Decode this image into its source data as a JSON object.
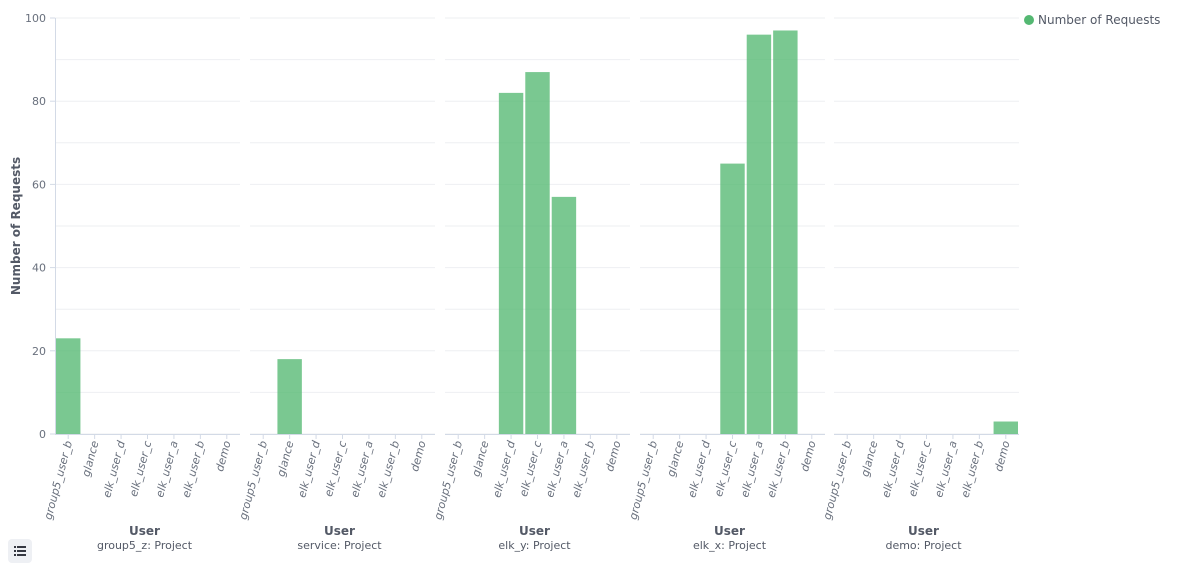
{
  "legend": {
    "label": "Number of Requests",
    "color": "#54b872",
    "toggle_icon": "list-icon"
  },
  "chart_data": {
    "type": "bar",
    "ylabel": "Number of Requests",
    "xlabel": "User",
    "ylim": [
      0,
      100
    ],
    "yticks": [
      0,
      20,
      40,
      60,
      80,
      100
    ],
    "grid": true,
    "legend_position": "top-right",
    "bar_color": "#54b872",
    "categories": [
      "group5_user_b",
      "glance",
      "elk_user_d",
      "elk_user_c",
      "elk_user_a",
      "elk_user_b",
      "demo"
    ],
    "panels": [
      {
        "title": "group5_z: Project",
        "xlabel": "User",
        "values": [
          23,
          0,
          0,
          0,
          0,
          0,
          0
        ]
      },
      {
        "title": "service: Project",
        "xlabel": "User",
        "values": [
          0,
          18,
          0,
          0,
          0,
          0,
          0
        ]
      },
      {
        "title": "elk_y: Project",
        "xlabel": "User",
        "values": [
          0,
          0,
          82,
          87,
          57,
          0,
          0
        ]
      },
      {
        "title": "elk_x: Project",
        "xlabel": "User",
        "values": [
          0,
          0,
          0,
          65,
          96,
          97,
          0
        ]
      },
      {
        "title": "demo: Project",
        "xlabel": "User",
        "values": [
          0,
          0,
          0,
          0,
          0,
          0,
          3
        ]
      }
    ]
  }
}
